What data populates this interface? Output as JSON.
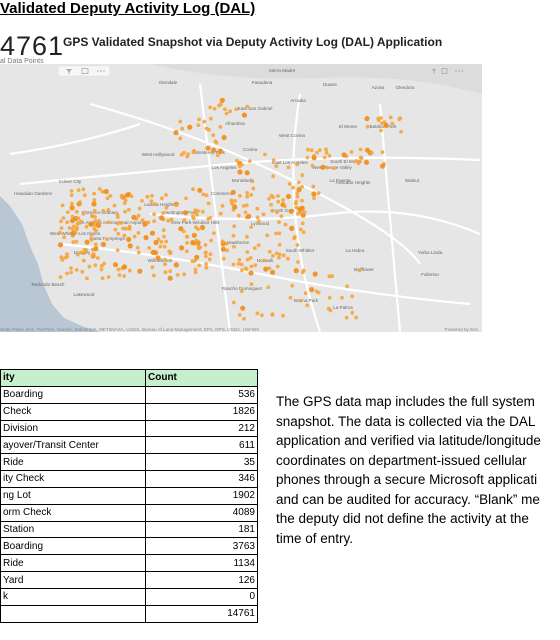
{
  "page": {
    "heading": "Validated Deputy Activity Log (DAL)"
  },
  "dashboard": {
    "total_count": "4761",
    "total_caption": "al Data Points",
    "title": "GPS Validated Snapshot via Deputy Activity Log (DAL) Application",
    "map_credit": "State Parks, Esri, TomTom, Garmin, SafeGraph, METI/NASA, USGS, Bureau of Land Management, EPA, NPS, USDA, USFWS",
    "powered_by": "Powered by Esri",
    "toolbar_icons": [
      "filter-icon",
      "focus-icon",
      "more-icon"
    ],
    "place_labels": [
      "Sierra Madre",
      "Glendale",
      "Pasadena",
      "Duarte",
      "Azusa",
      "Glendora",
      "Arcadia",
      "East San Gabriel",
      "Alhambra",
      "El Monte",
      "Baldwin Park",
      "West Covina",
      "Covina",
      "West Hollywood",
      "Monterey Park",
      "Los Angeles",
      "East Los Angeles",
      "South El Monte",
      "West Puente Valley",
      "Avocado Heights",
      "Walnut",
      "Culver City",
      "Montebello",
      "La Puente",
      "Commerce",
      "Hawaiian Gardens",
      "Ladera Heights",
      "Huntington Park",
      "Florence-Graham",
      "South Gate",
      "View Park-Windsor Hills",
      "West Whittier-Los Nietos",
      "Los Angeles International Airport",
      "Lynwood",
      "Santa Fe Springs",
      "Hawthorne",
      "Downey",
      "South Whittier",
      "La Habra",
      "Yorba Linda",
      "Willowbrook",
      "Norwalk",
      "Rancho Dominguez",
      "Bellflower",
      "Fullerton",
      "Redondo Beach",
      "Lakewood",
      "Buena Park",
      "La Palma"
    ],
    "map_colors": {
      "land": "#e6e6e6",
      "water": "#b8c7d3",
      "road": "#ffffff",
      "dot": "#f7a43a",
      "hot": "#f08c1a"
    }
  },
  "activity_table": {
    "col_activity": "ity",
    "col_count": "Count",
    "rows": [
      {
        "activity": "Boarding",
        "count": "536"
      },
      {
        "activity": "Check",
        "count": "1826"
      },
      {
        "activity": "Division",
        "count": "212"
      },
      {
        "activity": "ayover/Transit Center",
        "count": "611"
      },
      {
        "activity": "Ride",
        "count": "35"
      },
      {
        "activity": "ity Check",
        "count": "346"
      },
      {
        "activity": "ng Lot",
        "count": "1902"
      },
      {
        "activity": "orm Check",
        "count": "4089"
      },
      {
        "activity": "Station",
        "count": "181"
      },
      {
        "activity": "Boarding",
        "count": "3763"
      },
      {
        "activity": "Ride",
        "count": "1134"
      },
      {
        "activity": "Yard",
        "count": "126"
      },
      {
        "activity": "k",
        "count": "0"
      },
      {
        "activity": "",
        "count": "14761"
      }
    ]
  },
  "note": {
    "text": "The GPS data map includes the full system\nsnapshot. The data is collected via the DAL\napplication and verified via latitude/longitude\ncoordinates on department-issued cellular\nphones through a secure Microsoft applicati\nand can be audited for accuracy. “Blank” me\nthe deputy did not define the activity at the\ntime of entry."
  }
}
